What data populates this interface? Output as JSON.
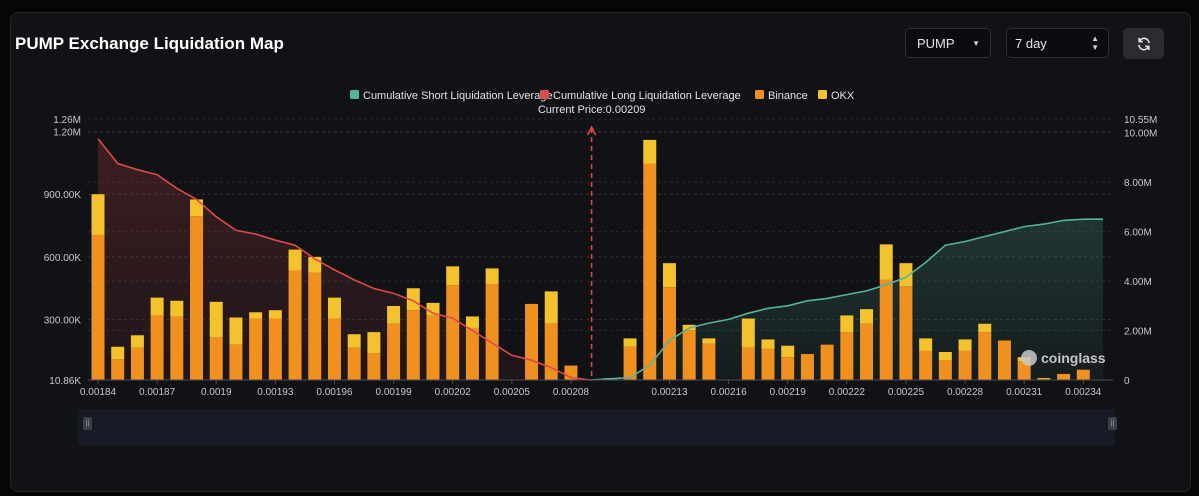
{
  "header": {
    "title": "PUMP Exchange Liquidation Map",
    "symbol_value": "PUMP",
    "range_value": "7 day",
    "refresh_icon": "refresh-icon"
  },
  "watermark": "coinglass",
  "chart_data": {
    "type": "bar",
    "categories": [
      "0.00184",
      "0.00185",
      "0.00186",
      "0.00187",
      "0.00188",
      "0.00189",
      "0.0019",
      "0.00191",
      "0.00192",
      "0.00193",
      "0.00194",
      "0.00195",
      "0.00196",
      "0.00197",
      "0.00198",
      "0.00199",
      "0.002",
      "0.00201",
      "0.00202",
      "0.00203",
      "0.00204",
      "0.00205",
      "0.00206",
      "0.00207",
      "0.00208",
      "0.00209",
      "0.0021",
      "0.00211",
      "0.00212",
      "0.00213",
      "0.00214",
      "0.00215",
      "0.00216",
      "0.00217",
      "0.00218",
      "0.00219",
      "0.0022",
      "0.00221",
      "0.00222",
      "0.00223",
      "0.00224",
      "0.00225",
      "0.00226",
      "0.00227",
      "0.00228",
      "0.00229",
      "0.0023",
      "0.00231",
      "0.00232",
      "0.00233",
      "0.00234",
      "0.00235"
    ],
    "x_tick_labels": [
      "0.00184",
      "0.00187",
      "0.0019",
      "0.00193",
      "0.00196",
      "0.00199",
      "0.00202",
      "0.00205",
      "0.00208",
      "0.00213",
      "0.00216",
      "0.00219",
      "0.00222",
      "0.00225",
      "0.00228",
      "0.00231",
      "0.00234"
    ],
    "series": [
      {
        "name": "Binance",
        "color": "#f0901f",
        "values": [
          705000,
          110000,
          165000,
          320000,
          315000,
          795000,
          215000,
          180000,
          305000,
          305000,
          535000,
          525000,
          305000,
          165000,
          140000,
          280000,
          345000,
          320000,
          465000,
          260000,
          470000,
          0,
          375000,
          280000,
          80000,
          0,
          15000,
          170000,
          1045000,
          455000,
          250000,
          185000,
          0,
          165000,
          160000,
          120000,
          135000,
          180000,
          240000,
          280000,
          490000,
          460000,
          150000,
          105000,
          150000,
          240000,
          200000,
          100000,
          15000,
          40000,
          60000,
          0
        ]
      },
      {
        "name": "OKX",
        "color": "#f4c22c",
        "values": [
          195000,
          60000,
          60000,
          85000,
          75000,
          80000,
          170000,
          130000,
          30000,
          40000,
          100000,
          75000,
          100000,
          65000,
          100000,
          85000,
          105000,
          60000,
          90000,
          55000,
          75000,
          0,
          0,
          155000,
          0,
          0,
          5000,
          40000,
          115000,
          115000,
          25000,
          25000,
          0,
          140000,
          45000,
          55000,
          0,
          0,
          80000,
          70000,
          170000,
          110000,
          60000,
          40000,
          55000,
          40000,
          0,
          20000,
          5000,
          0,
          0,
          0
        ]
      },
      {
        "name": "Cumulative Long Liquidation Leverage",
        "color": "#dc4a4a",
        "x": [
          0.00184,
          0.00185,
          0.00186,
          0.00187,
          0.00188,
          0.00189,
          0.0019,
          0.00191,
          0.00192,
          0.00193,
          0.00194,
          0.00195,
          0.00196,
          0.00197,
          0.00198,
          0.00199,
          0.002,
          0.00201,
          0.00202,
          0.00203,
          0.00204,
          0.00205,
          0.00206,
          0.00207,
          0.00208,
          0.00209
        ],
        "values": [
          9750000,
          8750000,
          8500000,
          8300000,
          7750000,
          7300000,
          6600000,
          6050000,
          5900000,
          5650000,
          5450000,
          4900000,
          4450000,
          4050000,
          3700000,
          3500000,
          3200000,
          2700000,
          2500000,
          2000000,
          1500000,
          1000000,
          800000,
          500000,
          100000,
          0
        ]
      },
      {
        "name": "Cumulative Short Liquidation Leverage",
        "color": "#53b49d",
        "x": [
          0.00209,
          0.00211,
          0.00212,
          0.00213,
          0.00214,
          0.00215,
          0.00216,
          0.00217,
          0.00218,
          0.00219,
          0.0022,
          0.00221,
          0.00222,
          0.00223,
          0.00224,
          0.00225,
          0.00226,
          0.00227,
          0.00228,
          0.00229,
          0.0023,
          0.00231,
          0.00232,
          0.00233,
          0.00234,
          0.00235
        ],
        "values": [
          0,
          100000,
          600000,
          1600000,
          2100000,
          2300000,
          2450000,
          2700000,
          2900000,
          3000000,
          3200000,
          3300000,
          3450000,
          3600000,
          3850000,
          4150000,
          4750000,
          5450000,
          5600000,
          5800000,
          6000000,
          6200000,
          6300000,
          6450000,
          6500000,
          6500000
        ]
      }
    ],
    "current_price_label": "Current Price:0.00209",
    "current_price": 0.00209,
    "y_left_ticks": [
      "10.86K",
      "300.00K",
      "600.00K",
      "900.00K",
      "1.20M",
      "1.26M"
    ],
    "y_left_tick_values": [
      10860,
      300000,
      600000,
      900000,
      1200000,
      1260000
    ],
    "y_left_range": [
      10860,
      1260000
    ],
    "y_right_ticks": [
      "0",
      "2.00M",
      "4.00M",
      "6.00M",
      "8.00M",
      "10.00M",
      "10.55M"
    ],
    "y_right_tick_values": [
      0,
      2000000,
      4000000,
      6000000,
      8000000,
      10000000,
      10550000
    ],
    "y_right_range": [
      0,
      10550000
    ],
    "legend": [
      "Cumulative Short Liquidation Leverage",
      "Cumulative Long Liquidation Leverage",
      "Binance",
      "OKX"
    ],
    "legend_colors": [
      "#53b49d",
      "#dc4a4a",
      "#f0901f",
      "#f4c22c"
    ],
    "legend_position": "top-center",
    "grid": true
  }
}
